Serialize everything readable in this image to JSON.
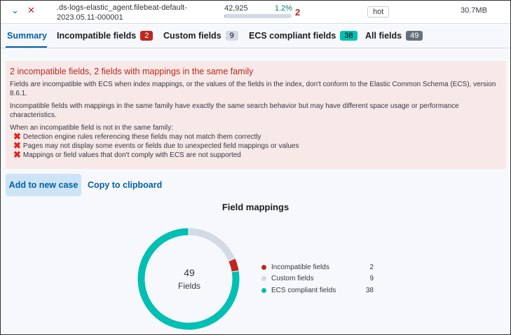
{
  "row": {
    "index_name": ".ds-logs-elastic_agent.filebeat-default-2023.05.11-000001",
    "docs": "42,925",
    "incompatible_pct": "1.2%",
    "incompatible_fraction": 0.012,
    "incompatible_count": "2",
    "ilm_phase": "hot",
    "size": "30.7MB"
  },
  "tabs": [
    {
      "label": "Summary"
    },
    {
      "label": "Incompatible fields",
      "count": "2",
      "color": "#bd271e"
    },
    {
      "label": "Custom fields",
      "count": "9",
      "color": "#d3dae6"
    },
    {
      "label": "ECS compliant fields",
      "count": "38",
      "color": "#00bfb3"
    },
    {
      "label": "All fields",
      "count": "49",
      "color": "#69707d"
    }
  ],
  "callout": {
    "title": "2 incompatible fields, 2 fields with mappings in the same family",
    "p1": "Fields are incompatible with ECS when index mappings, or the values of the fields in the index, don't conform to the Elastic Common Schema (ECS), version 8.6.1.",
    "p2": "Incompatible fields with mappings in the same family have exactly the same search behavior but may have different space usage or performance characteristics.",
    "p3": "When an incompatible field is not in the same family:",
    "items": [
      "Detection engine rules referencing these fields may not match them correctly",
      "Pages may not display some events or fields due to unexpected field mappings or values",
      "Mappings or field values that don't comply with ECS are not supported"
    ]
  },
  "actions": {
    "add_case": "Add to new case",
    "copy": "Copy to clipboard"
  },
  "chart_data": {
    "type": "pie",
    "title": "Field mappings",
    "center_value": "49",
    "center_label": "Fields",
    "categories": [
      "Custom fields",
      "Incompatible fields",
      "ECS compliant fields"
    ],
    "values": [
      9,
      2,
      38
    ],
    "colors": [
      "#d3dae6",
      "#bd271e",
      "#00bfb3"
    ],
    "legend": [
      {
        "label": "Incompatible fields",
        "value": "2",
        "color": "#bd271e"
      },
      {
        "label": "Custom fields",
        "value": "9",
        "color": "#d3dae6"
      },
      {
        "label": "ECS compliant fields",
        "value": "38",
        "color": "#00bfb3"
      }
    ]
  }
}
